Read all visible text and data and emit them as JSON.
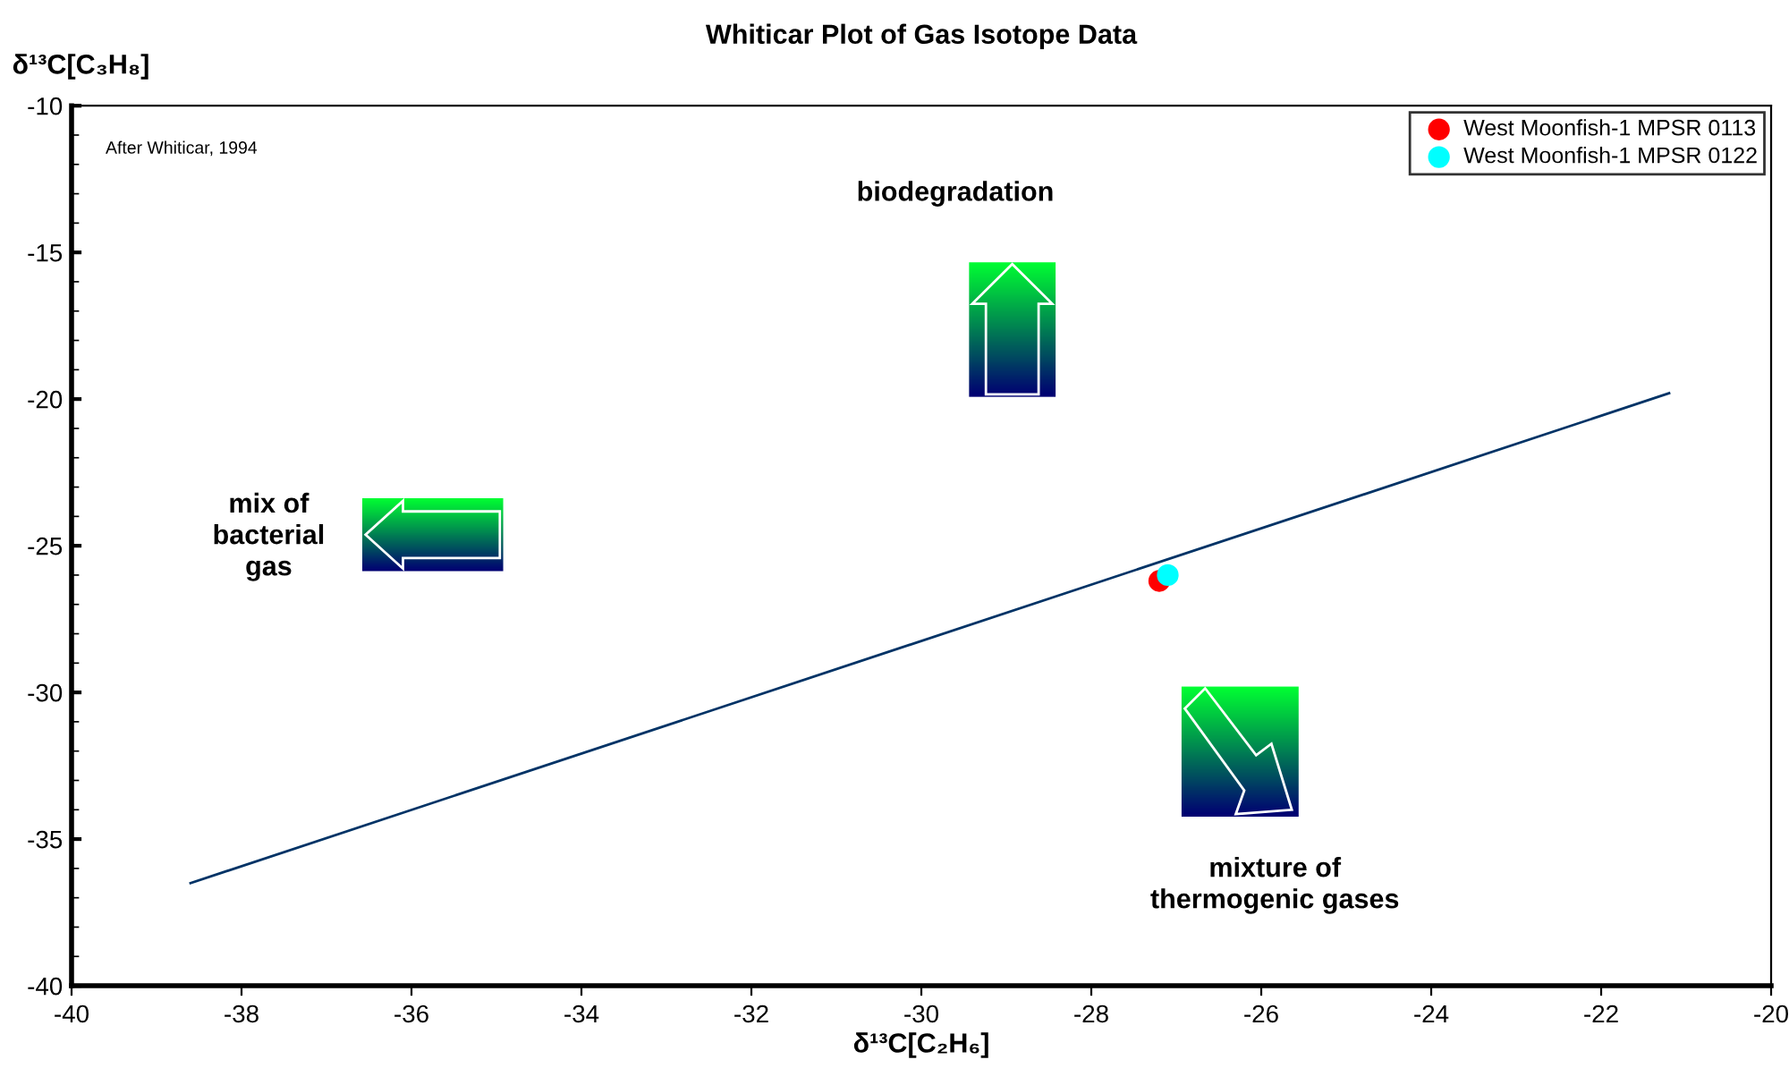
{
  "chart_data": {
    "type": "scatter",
    "title": "Whiticar Plot of Gas Isotope Data",
    "xlabel": "δ¹³C[C₂H₆]",
    "ylabel": "δ¹³C[C₃H₈]",
    "annotations": [
      "After Whiticar, 1994",
      "biodegradation",
      "mix of\nbacterial\ngas",
      "mixture of\nthermogenic gases"
    ],
    "series": [
      {
        "name": "West Moonfish-1 MPSR 0113",
        "color": "#ff0000",
        "x": [
          -27.2
        ],
        "values": [
          -26.2
        ]
      },
      {
        "name": "West Moonfish-1 MPSR 0122",
        "color": "#00ffff",
        "x": [
          -27.1
        ],
        "values": [
          -26.0
        ]
      },
      {
        "type": "line",
        "marker": "none",
        "color": "#003366",
        "x": [
          -38.6,
          -21.2
        ],
        "values": [
          -36.5,
          -19.8
        ]
      }
    ],
    "xlim": [
      -40,
      -20
    ],
    "xticks": [
      -40,
      -38,
      -36,
      -34,
      -32,
      -30,
      -28,
      -26,
      -24,
      -22,
      -20
    ],
    "ylim": [
      -40,
      -10
    ],
    "yticks": [
      -40,
      -35,
      -30,
      -25,
      -20,
      -15,
      -10
    ],
    "marker": "circle",
    "legend": "top right",
    "grid": false
  }
}
